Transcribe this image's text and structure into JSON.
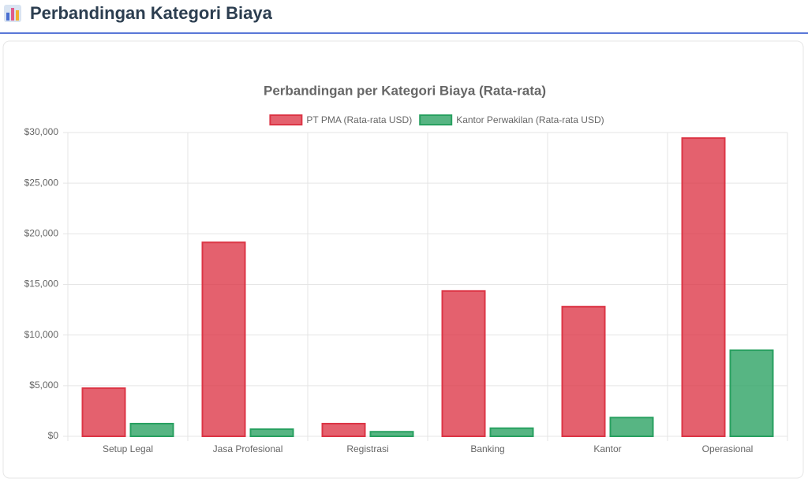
{
  "header": {
    "title": "Perbandingan Kategori Biaya"
  },
  "chart_data": {
    "type": "bar",
    "title": "Perbandingan per Kategori Biaya (Rata-rata)",
    "categories": [
      "Setup Legal",
      "Jasa Profesional",
      "Registrasi",
      "Banking",
      "Kantor",
      "Operasional"
    ],
    "series": [
      {
        "name": "PT PMA (Rata-rata USD)",
        "color": "#dc3545",
        "values": [
          4750,
          19150,
          1250,
          14350,
          12800,
          29450
        ]
      },
      {
        "name": "Kantor Perwakilan (Rata-rata USD)",
        "color": "#28a060",
        "values": [
          1250,
          700,
          450,
          800,
          1850,
          8500
        ]
      }
    ],
    "ylim": [
      0,
      30000
    ],
    "yticks": [
      {
        "value": 0,
        "label": "$0"
      },
      {
        "value": 5000,
        "label": "$5,000"
      },
      {
        "value": 10000,
        "label": "$10,000"
      },
      {
        "value": 15000,
        "label": "$15,000"
      },
      {
        "value": 20000,
        "label": "$20,000"
      },
      {
        "value": 25000,
        "label": "$25,000"
      },
      {
        "value": 30000,
        "label": "$30,000"
      }
    ],
    "grid": true,
    "legend": "top"
  }
}
